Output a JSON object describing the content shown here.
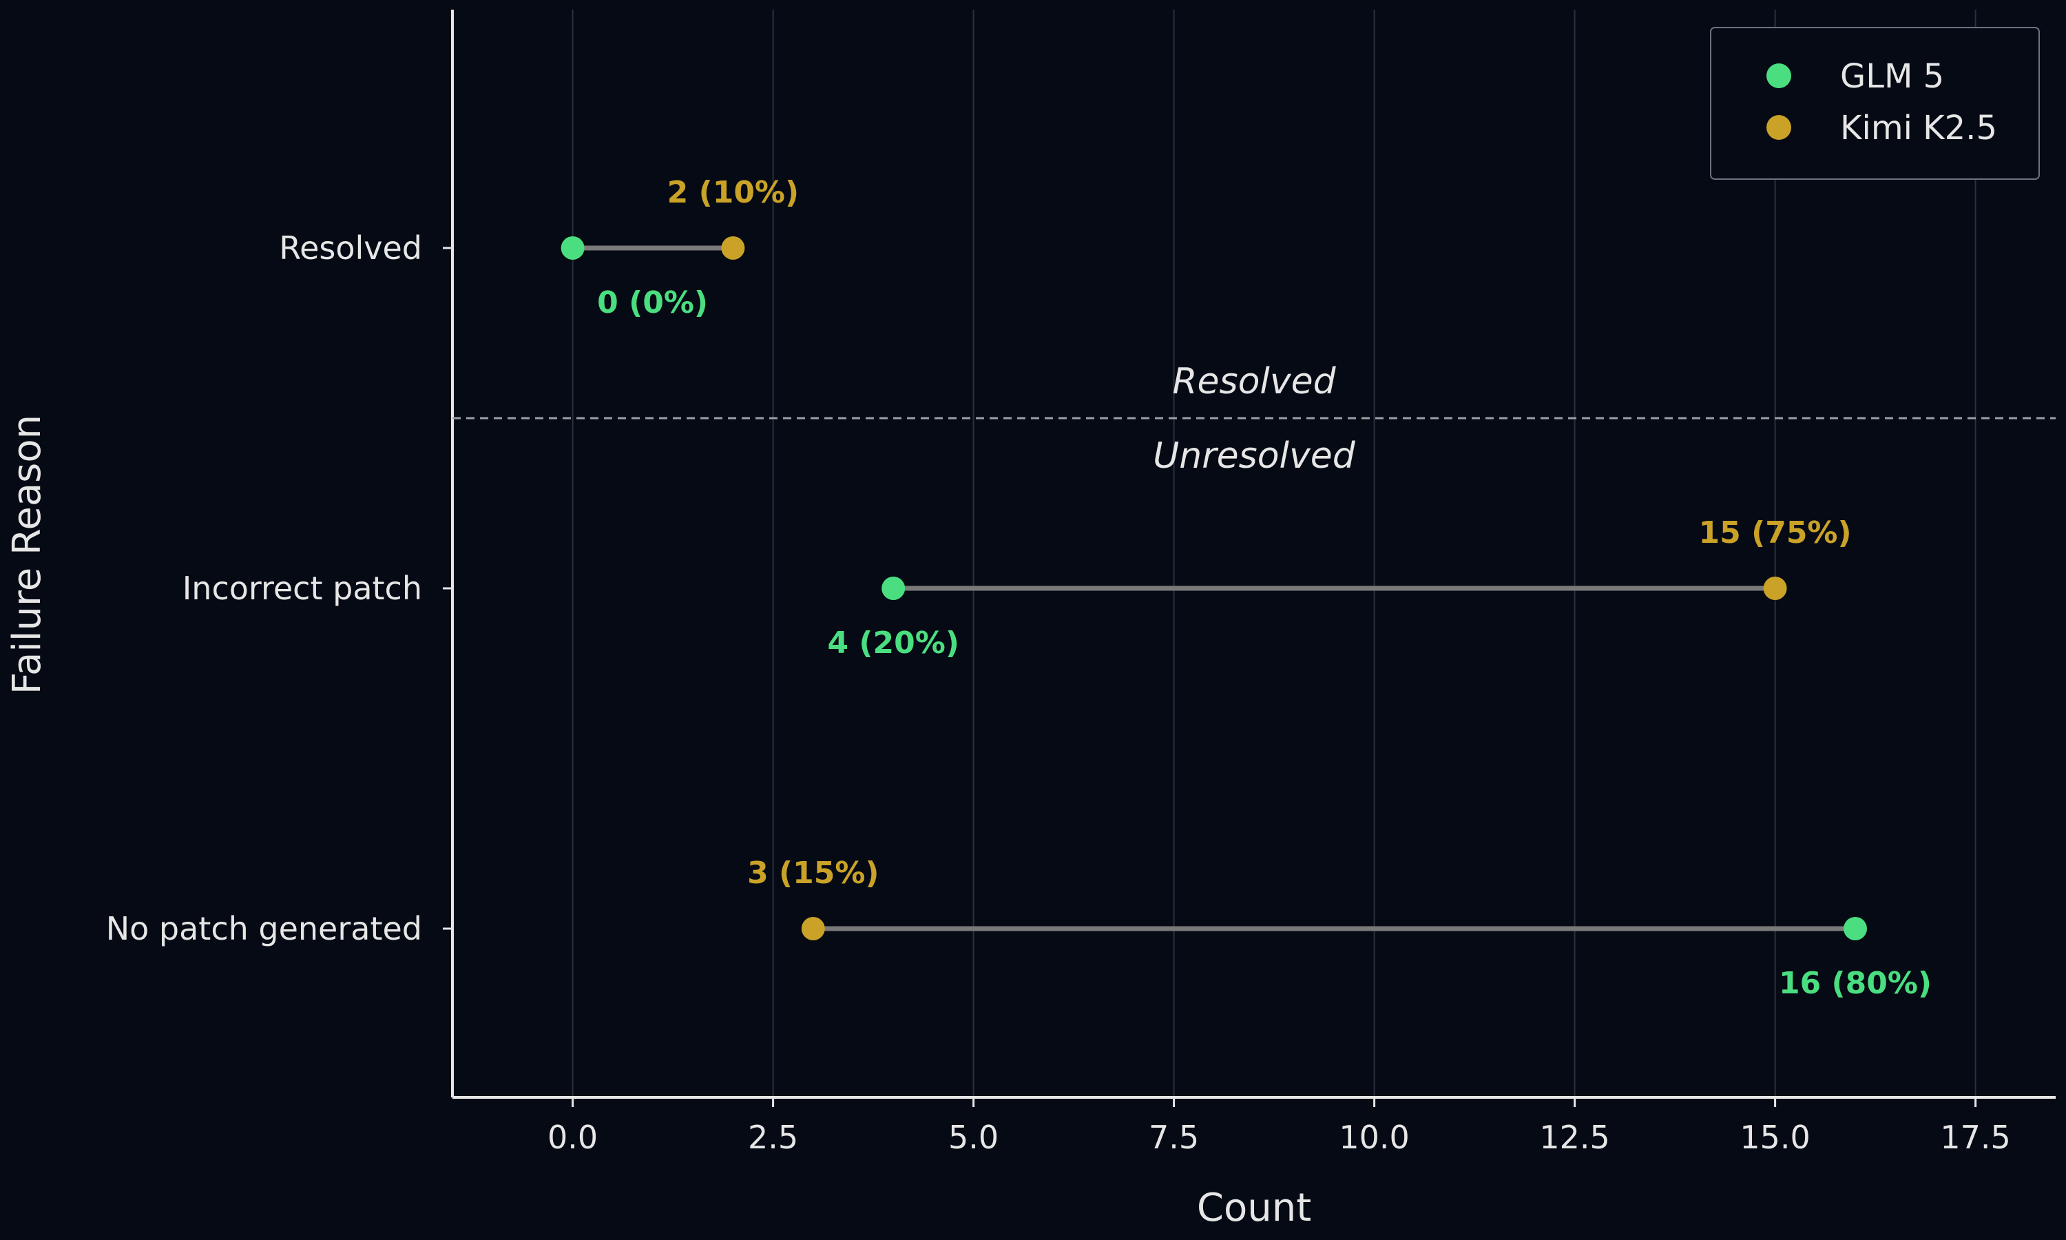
{
  "chart_data": {
    "type": "dumbbell",
    "ylabel": "Failure Reason",
    "xlabel": "Count",
    "xlim": [
      -1.5,
      18.5
    ],
    "xticks": [
      0.0,
      2.5,
      5.0,
      7.5,
      10.0,
      12.5,
      15.0,
      17.5
    ],
    "xtick_labels": [
      "0.0",
      "2.5",
      "5.0",
      "7.5",
      "10.0",
      "12.5",
      "15.0",
      "17.5"
    ],
    "grid": "vertical",
    "legend_position": "top-right",
    "categories": [
      "Resolved",
      "Incorrect patch",
      "No patch generated"
    ],
    "series": [
      {
        "name": "GLM 5",
        "color": "#4ade80",
        "values": [
          0,
          4,
          16
        ],
        "labels": [
          "0 (0%)",
          "4 (20%)",
          "16 (80%)"
        ]
      },
      {
        "name": "Kimi K2.5",
        "color": "#c9a227",
        "values": [
          2,
          15,
          3
        ],
        "labels": [
          "2 (10%)",
          "15 (75%)",
          "3 (15%)"
        ]
      }
    ],
    "divider": {
      "above_label": "Resolved",
      "below_label": "Unresolved"
    }
  }
}
